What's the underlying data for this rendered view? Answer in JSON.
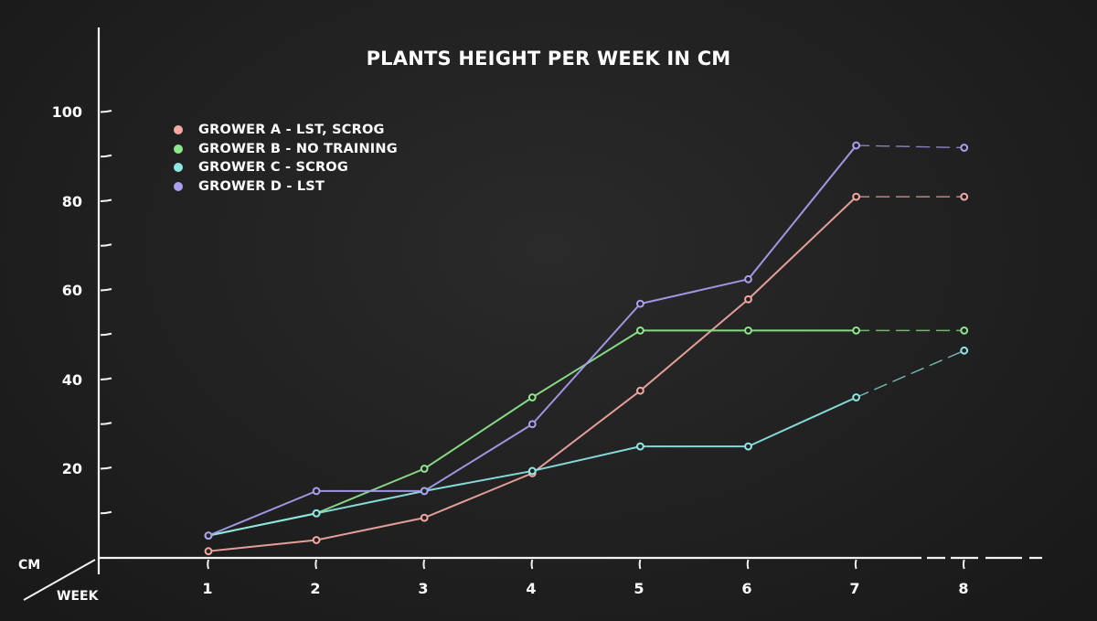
{
  "chart_data": {
    "type": "line",
    "title": "PLANTS HEIGHT PER WEEK IN CM",
    "xlabel": "WEEK",
    "ylabel": "CM",
    "x": [
      1,
      2,
      3,
      4,
      5,
      6,
      7,
      8
    ],
    "x_tick_labels": [
      "1",
      "2",
      "3",
      "4",
      "5",
      "6",
      "7",
      "8"
    ],
    "y_tick_labels": [
      "20",
      "40",
      "60",
      "80",
      "100"
    ],
    "y_ticks": [
      20,
      40,
      60,
      80,
      100
    ],
    "ylim": [
      0,
      100
    ],
    "minor_tick_step": 10,
    "grid": false,
    "legend_position": "top-left",
    "last_segment_style": "dashed",
    "series": [
      {
        "name": "GROWER A - LST, SCROG",
        "color": "#f4a9a3",
        "values": [
          1.5,
          4,
          9,
          19,
          37.5,
          58,
          81,
          81
        ]
      },
      {
        "name": "GROWER B - NO TRAINING",
        "color": "#8ee98e",
        "values": [
          5,
          10,
          20,
          36,
          51,
          51,
          51,
          51
        ]
      },
      {
        "name": "GROWER C - SCROG",
        "color": "#8ee8e6",
        "values": [
          5,
          10,
          15,
          19.5,
          25,
          25,
          36,
          46.5
        ]
      },
      {
        "name": "GROWER D - LST",
        "color": "#a9a0f0",
        "values": [
          5,
          15,
          15,
          30,
          57,
          62.5,
          92.5,
          92
        ]
      }
    ]
  }
}
